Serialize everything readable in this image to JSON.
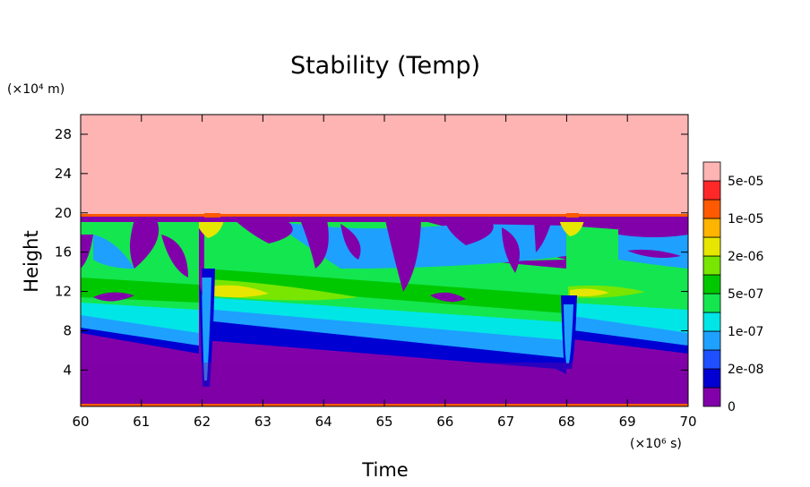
{
  "chart_data": {
    "type": "heatmap",
    "title": "Stability (Temp)",
    "xlabel": "Time",
    "ylabel": "Height",
    "x_unit": "(×10⁶ s)",
    "y_unit": "(×10⁴ m)",
    "xlim": [
      60,
      70
    ],
    "ylim": [
      0.3,
      30
    ],
    "x_ticks": [
      "60",
      "61",
      "62",
      "63",
      "64",
      "65",
      "66",
      "67",
      "68",
      "69",
      "70"
    ],
    "y_ticks": [
      "4",
      "8",
      "12",
      "16",
      "20",
      "24",
      "28"
    ],
    "y_tick_values": [
      4,
      8,
      12,
      16,
      20,
      24,
      28
    ],
    "colorbar": {
      "labels": [
        "0",
        "2e-08",
        "1e-07",
        "5e-07",
        "2e-06",
        "1e-05",
        "5e-05"
      ],
      "colors": [
        "#8200aa",
        "#0000d2",
        "#1e50ff",
        "#1ea0ff",
        "#00e6e6",
        "#14e650",
        "#00c800",
        "#78e600",
        "#e6e600",
        "#ffb400",
        "#ff5a00",
        "#ff2828",
        "#ffb4b4"
      ]
    },
    "layers": {
      "top_region_value": "above 5e-05",
      "top_region_from_height": 19.6,
      "event_times": [
        62.0,
        68.0
      ]
    }
  }
}
